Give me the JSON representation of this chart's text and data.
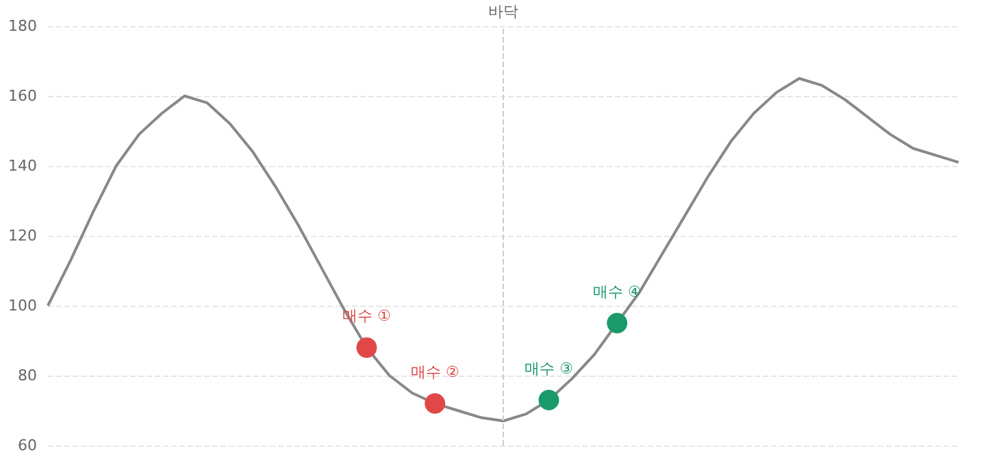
{
  "chart_data": {
    "type": "line",
    "categories": [
      null,
      null,
      null,
      null,
      null,
      null,
      null,
      null,
      null,
      null,
      null,
      null,
      null,
      null,
      null,
      null,
      null,
      null,
      null,
      null,
      null,
      null,
      null,
      null,
      null,
      null,
      null,
      null,
      null,
      null,
      null,
      null,
      null,
      null,
      null,
      null,
      null,
      null,
      null,
      null,
      null
    ],
    "ylim": [
      60,
      180
    ],
    "yticks": [
      60,
      80,
      100,
      120,
      140,
      160,
      180
    ],
    "grid": "y",
    "series": [
      {
        "color": "#888888",
        "values": [
          100,
          113,
          127,
          140,
          149,
          155,
          160,
          158,
          152,
          144,
          134,
          123,
          111,
          99,
          88,
          80,
          75,
          72,
          70,
          68,
          67,
          69,
          73,
          79,
          86,
          95,
          104,
          115,
          126,
          137,
          147,
          155,
          161,
          165,
          163,
          159,
          154,
          149,
          145,
          143,
          141
        ],
        "value_labels": [
          null,
          null,
          null,
          null,
          null,
          null,
          null,
          null,
          null,
          null,
          null,
          null,
          null,
          null,
          "매수 ①",
          null,
          null,
          "매수 ②",
          null,
          null,
          null,
          null,
          "매수 ③",
          null,
          null,
          "매수 ④",
          null,
          null,
          null,
          null,
          null,
          null,
          null,
          null,
          null,
          null,
          null,
          null,
          null,
          null,
          null
        ],
        "colors": [
          null,
          null,
          null,
          null,
          null,
          null,
          null,
          null,
          null,
          null,
          null,
          null,
          null,
          null,
          "#e04848",
          null,
          null,
          "#e04848",
          null,
          null,
          null,
          null,
          "#1a9a6a",
          null,
          null,
          "#1a9a6a",
          null,
          null,
          null,
          null,
          null,
          null,
          null,
          null,
          null,
          null,
          null,
          null,
          null,
          null,
          null
        ]
      }
    ],
    "annotations": [
      "바닥"
    ]
  }
}
